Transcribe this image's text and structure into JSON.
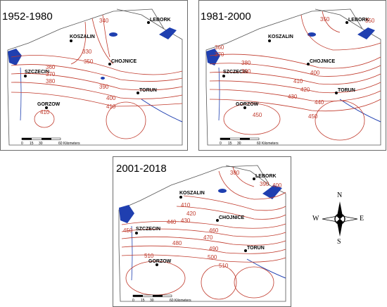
{
  "panels": [
    {
      "period": "1952-1980",
      "cities": [
        "LEBORK",
        "KOSZALIN",
        "CHOJNICE",
        "SZCZECIN",
        "TORUN",
        "GORZOW"
      ],
      "isolines": [
        "340",
        "330",
        "350",
        "360",
        "370",
        "380",
        "390",
        "400",
        "410",
        "410"
      ],
      "scale": {
        "ticks": [
          "0",
          "15",
          "30",
          "60"
        ],
        "unit": "Kilometers"
      }
    },
    {
      "period": "1981-2000",
      "cities": [
        "LEBORK",
        "KOSZALIN",
        "CHOJNICE",
        "SZCZECIN",
        "TORUN",
        "GORZOW"
      ],
      "isolines": [
        "350",
        "350",
        "360",
        "370",
        "380",
        "390",
        "410",
        "400",
        "420",
        "430",
        "440",
        "450",
        "450"
      ],
      "scale": {
        "ticks": [
          "0",
          "15",
          "30",
          "60"
        ],
        "unit": "Kilometers"
      }
    },
    {
      "period": "2001-2018",
      "cities": [
        "LEBORK",
        "KOSZALIN",
        "CHOJNICE",
        "SZCZECIN",
        "TORUN",
        "GORZOW"
      ],
      "isolines": [
        "380",
        "390",
        "400",
        "410",
        "420",
        "430",
        "440",
        "450",
        "460",
        "470",
        "480",
        "490",
        "500",
        "510",
        "510"
      ],
      "scale": {
        "ticks": [
          "0",
          "15",
          "30",
          "60"
        ],
        "unit": "Kilometers"
      }
    }
  ],
  "compass": {
    "n": "N",
    "s": "S",
    "e": "E",
    "w": "W"
  },
  "colors": {
    "isoline": "#c0392b",
    "water": "#1f3fb0",
    "border": "#555555",
    "city": "#000000"
  }
}
